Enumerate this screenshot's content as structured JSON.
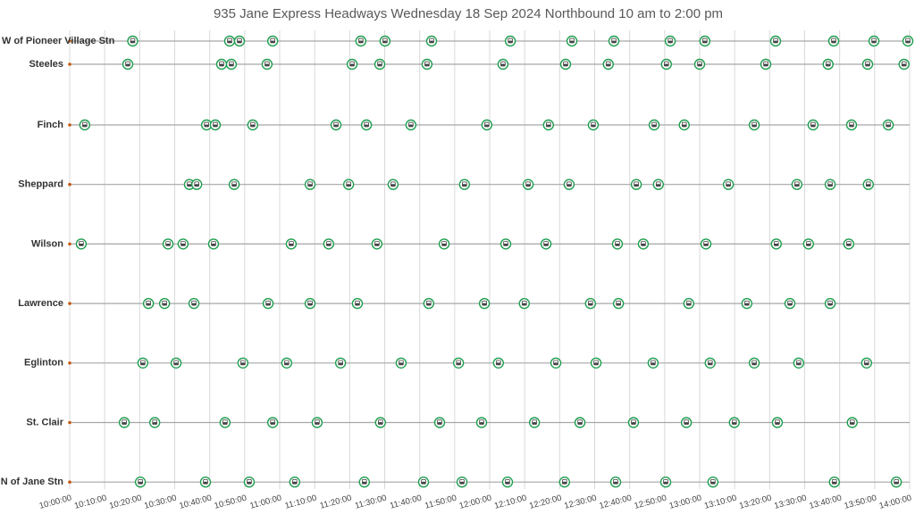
{
  "chart_data": {
    "type": "timeline",
    "title": "935 Jane Express Headways Wednesday 18 Sep 2024 Northbound 10 am to 2:00 pm",
    "color": "#1e9e4f",
    "grid": true,
    "xlim": [
      600,
      840
    ],
    "xticks": [
      {
        "value": 600,
        "label": "10:00:00"
      },
      {
        "value": 610,
        "label": "10:10:00"
      },
      {
        "value": 620,
        "label": "10:20:00"
      },
      {
        "value": 630,
        "label": "10:30:00"
      },
      {
        "value": 640,
        "label": "10:40:00"
      },
      {
        "value": 650,
        "label": "10:50:00"
      },
      {
        "value": 660,
        "label": "11:00:00"
      },
      {
        "value": 670,
        "label": "11:10:00"
      },
      {
        "value": 680,
        "label": "11:20:00"
      },
      {
        "value": 690,
        "label": "11:30:00"
      },
      {
        "value": 700,
        "label": "11:40:00"
      },
      {
        "value": 710,
        "label": "11:50:00"
      },
      {
        "value": 720,
        "label": "12:00:00"
      },
      {
        "value": 730,
        "label": "12:10:00"
      },
      {
        "value": 740,
        "label": "12:20:00"
      },
      {
        "value": 750,
        "label": "12:30:00"
      },
      {
        "value": 760,
        "label": "12:40:00"
      },
      {
        "value": 770,
        "label": "12:50:00"
      },
      {
        "value": 780,
        "label": "13:00:00"
      },
      {
        "value": 790,
        "label": "13:10:00"
      },
      {
        "value": 800,
        "label": "13:20:00"
      },
      {
        "value": 810,
        "label": "13:30:00"
      },
      {
        "value": 820,
        "label": "13:40:00"
      },
      {
        "value": 830,
        "label": "13:50:00"
      },
      {
        "value": 840,
        "label": "14:00:00"
      }
    ],
    "series": [
      {
        "name": "W of Pioneer Village Stn",
        "x": [
          618,
          645.7,
          648.5,
          658,
          683.2,
          690.1,
          703.4,
          725.9,
          743.5,
          755.5,
          771.6,
          781.5,
          801.7,
          818.3,
          829.8,
          839.5
        ]
      },
      {
        "name": "Steeles",
        "x": [
          616.6,
          643.4,
          646.2,
          656.4,
          680.7,
          688.6,
          702.1,
          723.8,
          741.7,
          753.9,
          770.5,
          780,
          798.9,
          816.7,
          828,
          838.4
        ]
      },
      {
        "name": "Finch",
        "x": [
          604.3,
          639.1,
          641.6,
          652.3,
          676.1,
          684.8,
          697.5,
          719.2,
          736.8,
          749.6,
          767,
          775.6,
          795.6,
          812.4,
          823.4,
          833.9
        ]
      },
      {
        "name": "Sheppard",
        "x": [
          634.2,
          636.3,
          647,
          668.7,
          679.7,
          692.4,
          712.8,
          731,
          742.7,
          761.9,
          768.2,
          788.2,
          807.8,
          817.3,
          828.2
        ]
      },
      {
        "name": "Wilson",
        "x": [
          603.3,
          628.1,
          632.4,
          641.1,
          663.3,
          674,
          687.8,
          707,
          724.6,
          736.1,
          756.5,
          763.9,
          781.8,
          801.9,
          811.1,
          822.6
        ]
      },
      {
        "name": "Lawrence",
        "x": [
          622.5,
          627.1,
          635.5,
          656.7,
          668.7,
          682.2,
          702.6,
          718.5,
          729.9,
          748.8,
          756.8,
          776.9,
          793.5,
          805.8,
          817.3
        ]
      },
      {
        "name": "Eglinton",
        "x": [
          620.9,
          630.4,
          649.5,
          662,
          677.4,
          694.7,
          711.1,
          722.5,
          738.9,
          750.4,
          766.7,
          783,
          795.6,
          808.3,
          827.7
        ]
      },
      {
        "name": "St. Clair",
        "x": [
          615.6,
          624.3,
          644.4,
          658,
          670.7,
          688.8,
          705.7,
          717.7,
          732.8,
          745.8,
          761.1,
          776.2,
          789.9,
          802.2,
          823.6
        ]
      },
      {
        "name": "N of Jane Stn",
        "x": [
          620.2,
          638.8,
          651.3,
          664.3,
          684.2,
          701.1,
          712.1,
          725.1,
          741.4,
          756,
          770.3,
          783.8,
          818.5,
          836.2
        ]
      }
    ]
  }
}
